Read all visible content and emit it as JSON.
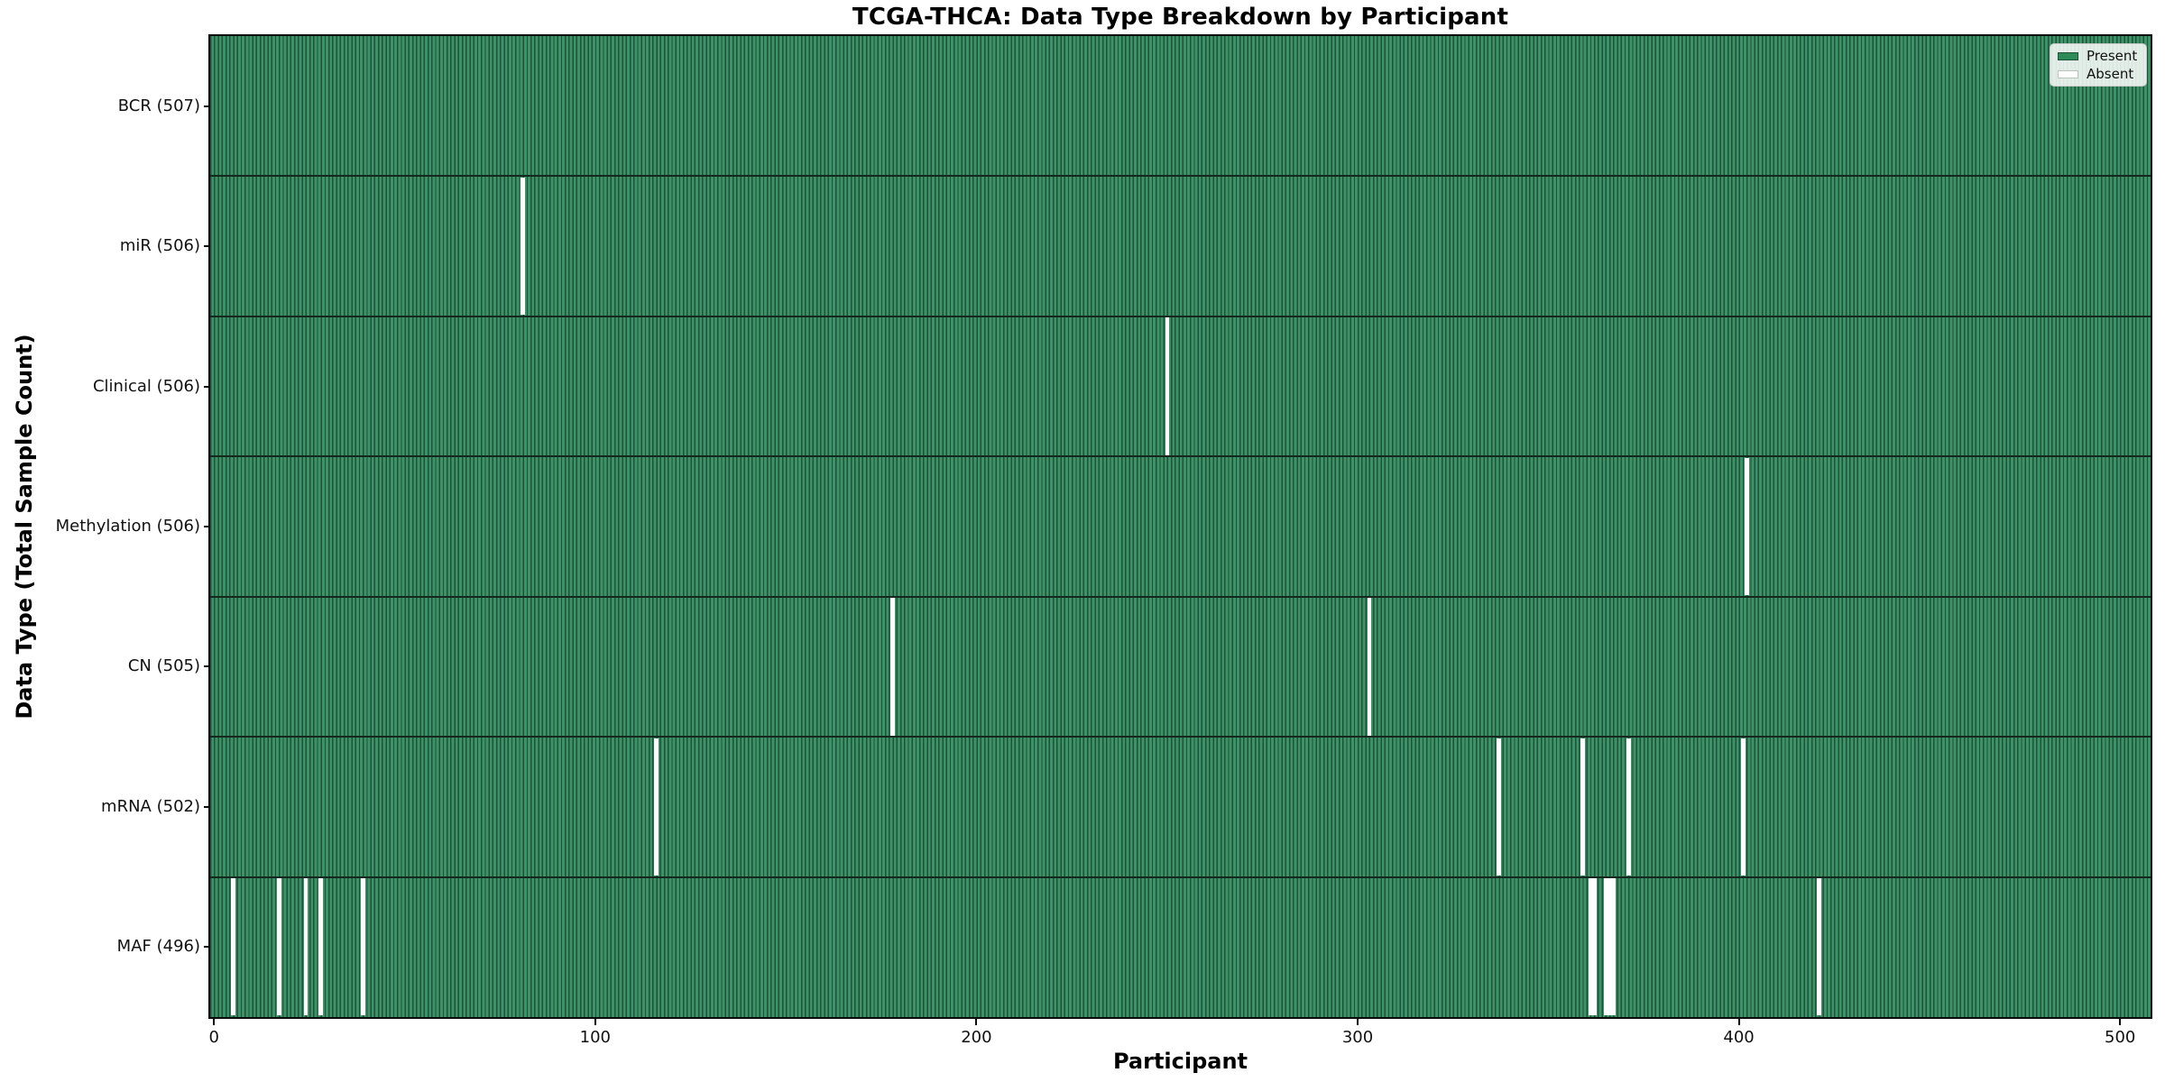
{
  "figure": {
    "background": "#ffffff"
  },
  "chart_data": {
    "type": "heatmap",
    "title": "TCGA-THCA: Data Type Breakdown by Participant",
    "xlabel": "Participant",
    "ylabel": "Data Type (Total Sample Count)",
    "x_ticks": [
      0,
      100,
      200,
      300,
      400,
      500
    ],
    "xlim": [
      -1,
      508
    ],
    "n_participants": 507,
    "grid": false,
    "colors": {
      "present_fill": "#3b9367",
      "bar_edge": "#20513a",
      "row_separator": "#16281e",
      "axis": "#0b0b0b",
      "absent": "#ffffff",
      "legend_present_swatch": "#2e8b57"
    },
    "legend": {
      "position": "upper-right",
      "entries": [
        {
          "label": "Present",
          "color": "#2e8b57"
        },
        {
          "label": "Absent",
          "color": "#ffffff"
        }
      ]
    },
    "rows": [
      {
        "label": "BCR (507)",
        "data_type": "BCR",
        "total_samples": 507,
        "absent_participants": []
      },
      {
        "label": "miR (506)",
        "data_type": "miR",
        "total_samples": 506,
        "absent_participants": [
          81
        ]
      },
      {
        "label": "Clinical (506)",
        "data_type": "Clinical",
        "total_samples": 506,
        "absent_participants": [
          250
        ]
      },
      {
        "label": "Methylation (506)",
        "data_type": "Methylation",
        "total_samples": 506,
        "absent_participants": [
          402
        ]
      },
      {
        "label": "CN (505)",
        "data_type": "CN",
        "total_samples": 505,
        "absent_participants": [
          178,
          303
        ]
      },
      {
        "label": "mRNA (502)",
        "data_type": "mRNA",
        "total_samples": 502,
        "absent_participants": [
          116,
          337,
          359,
          371,
          401
        ]
      },
      {
        "label": "MAF (496)",
        "data_type": "MAF",
        "total_samples": 496,
        "absent_participants": [
          5,
          17,
          24,
          28,
          39,
          361,
          362,
          365,
          366,
          367,
          421
        ]
      }
    ]
  }
}
